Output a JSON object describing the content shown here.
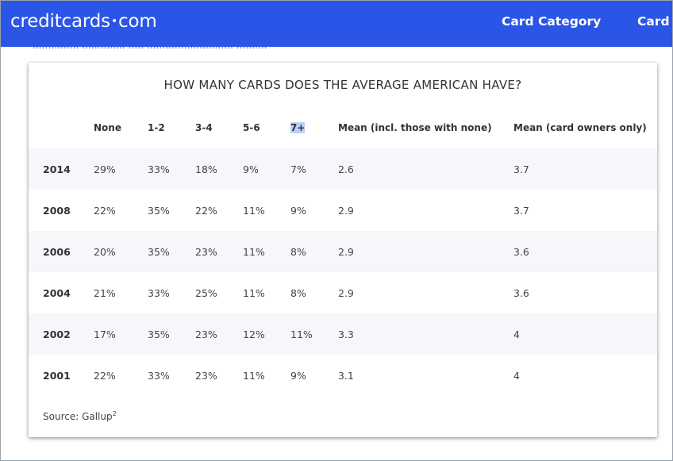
{
  "header": {
    "logo_left": "creditcards",
    "logo_dot": "•",
    "logo_right": "com",
    "nav": [
      "Card Category",
      "Card"
    ]
  },
  "peek_text": "...............  ..............  .....  ............................  ..........",
  "table": {
    "title": "HOW MANY CARDS DOES THE AVERAGE AMERICAN HAVE?",
    "columns": [
      "",
      "None",
      "1-2",
      "3-4",
      "5-6",
      "7+",
      "Mean (incl. those with none)",
      "Mean (card owners only)"
    ],
    "rows": [
      [
        "2014",
        "29%",
        "33%",
        "18%",
        "9%",
        "7%",
        "2.6",
        "3.7"
      ],
      [
        "2008",
        "22%",
        "35%",
        "22%",
        "11%",
        "9%",
        "2.9",
        "3.7"
      ],
      [
        "2006",
        "20%",
        "35%",
        "23%",
        "11%",
        "8%",
        "2.9",
        "3.6"
      ],
      [
        "2004",
        "21%",
        "33%",
        "25%",
        "11%",
        "8%",
        "2.9",
        "3.6"
      ],
      [
        "2002",
        "17%",
        "35%",
        "23%",
        "12%",
        "11%",
        "3.3",
        "4"
      ],
      [
        "2001",
        "22%",
        "33%",
        "23%",
        "11%",
        "9%",
        "3.1",
        "4"
      ]
    ],
    "source_label": "Source: Gallup",
    "source_sup": "2"
  },
  "colors": {
    "header_bg": "#2b55e6",
    "row_shade": "#f5f7fa"
  }
}
